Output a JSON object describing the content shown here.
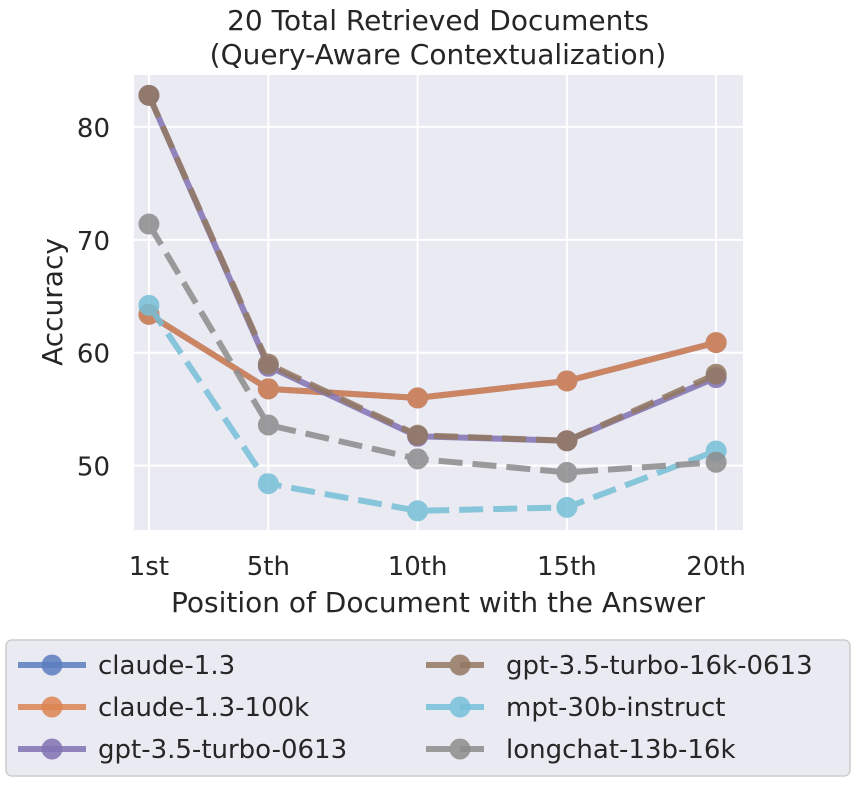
{
  "chart_data": {
    "type": "line",
    "title": "20 Total Retrieved Documents\n(Query-Aware Contextualization)",
    "title_lines": [
      "20 Total Retrieved Documents",
      "(Query-Aware Contextualization)"
    ],
    "xlabel": "Position of Document with the Answer",
    "ylabel": "Accuracy",
    "categories": [
      "1st",
      "5th",
      "10th",
      "15th",
      "20th"
    ],
    "x": [
      1,
      5,
      10,
      15,
      20
    ],
    "xlim": [
      0.5,
      20.9
    ],
    "ylim": [
      44.3,
      84.6
    ],
    "yticks": [
      50,
      60,
      70,
      80
    ],
    "grid": true,
    "legend_position": "below",
    "series": [
      {
        "name": "claude-1.3",
        "values": [
          63.4,
          56.8,
          56.0,
          57.5,
          60.9
        ],
        "color": "#5a7cc0",
        "dashed": false
      },
      {
        "name": "claude-1.3-100k",
        "values": [
          63.4,
          56.8,
          56.0,
          57.5,
          60.9
        ],
        "color": "#dd8452",
        "dashed": false
      },
      {
        "name": "gpt-3.5-turbo-0613",
        "values": [
          82.8,
          58.8,
          52.6,
          52.2,
          57.8
        ],
        "color": "#8172b3",
        "dashed": false
      },
      {
        "name": "gpt-3.5-turbo-16k-0613",
        "values": [
          82.8,
          59.0,
          52.7,
          52.2,
          58.1
        ],
        "color": "#937860",
        "dashed": true
      },
      {
        "name": "mpt-30b-instruct",
        "values": [
          64.2,
          48.4,
          46.0,
          46.3,
          51.3
        ],
        "color": "#76bfd8",
        "dashed": true
      },
      {
        "name": "longchat-13b-16k",
        "values": [
          71.4,
          53.6,
          50.6,
          49.4,
          50.3
        ],
        "color": "#8c8c8c",
        "dashed": true
      }
    ]
  }
}
